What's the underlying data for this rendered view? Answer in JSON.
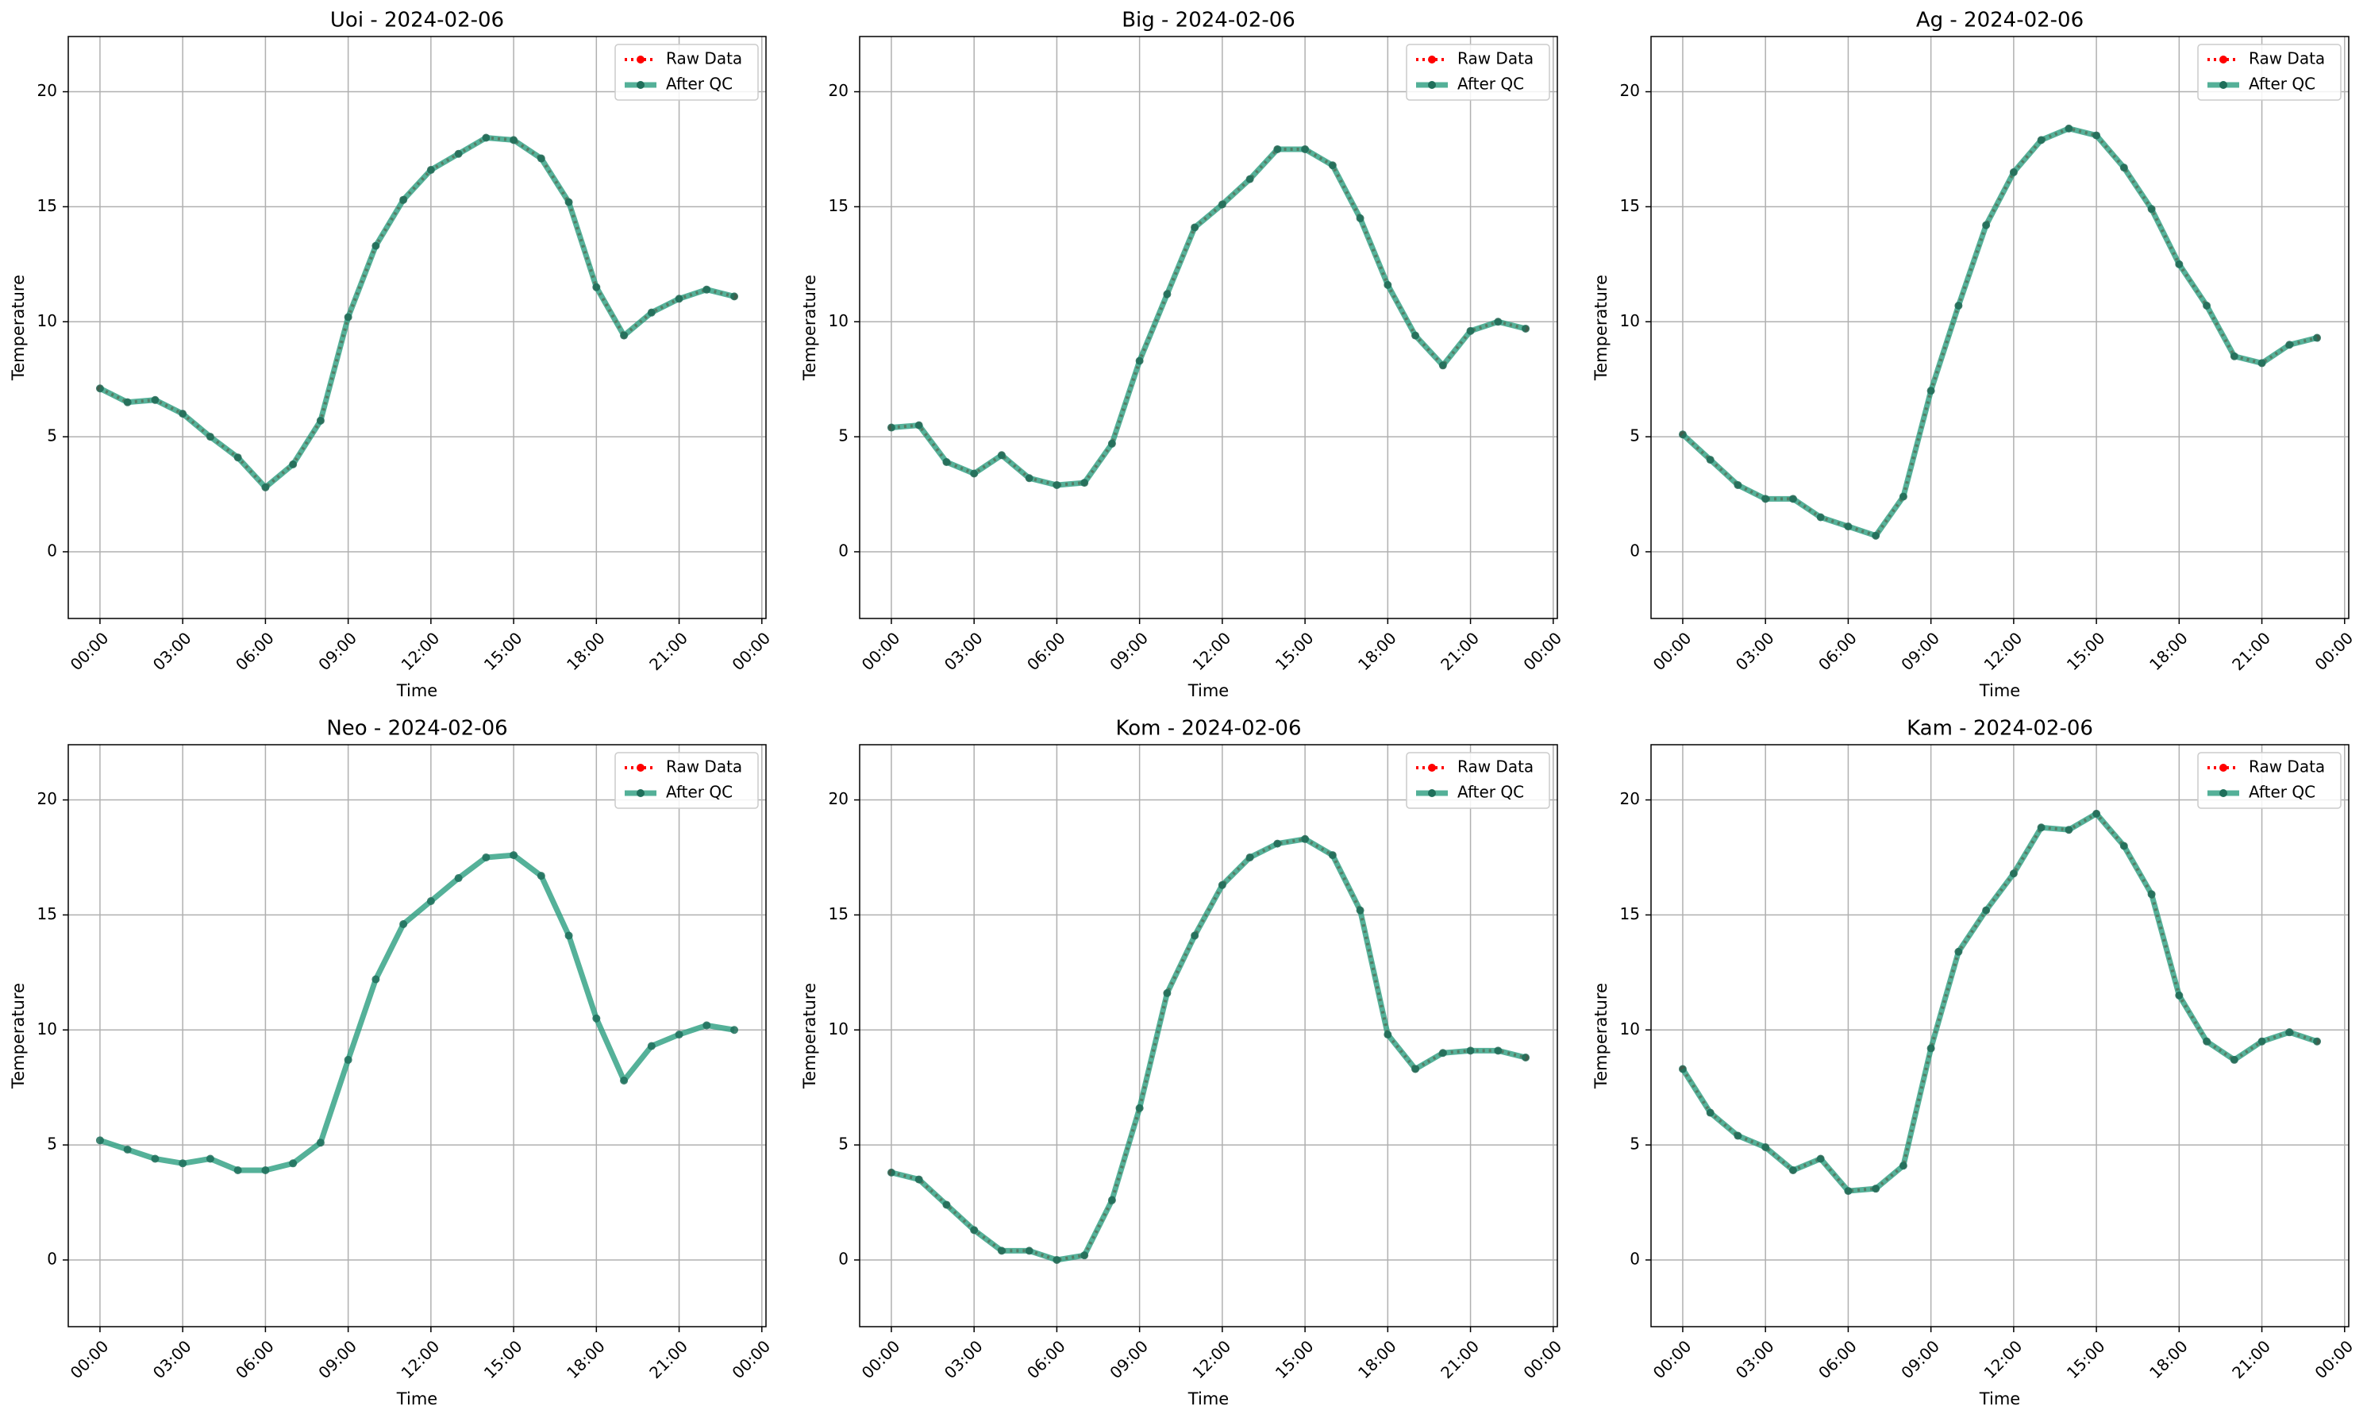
{
  "chart_data": [
    {
      "type": "line",
      "title": "Uoi - 2024-02-06",
      "xlabel": "Time",
      "ylabel": "Temperature",
      "x": [
        0,
        1,
        2,
        3,
        4,
        5,
        6,
        7,
        8,
        9,
        10,
        11,
        12,
        13,
        14,
        15,
        16,
        17,
        18,
        19,
        20,
        21,
        22,
        23
      ],
      "xlim": [
        -1.15,
        24.15
      ],
      "xticks": [
        {
          "value": 0,
          "label": "00:00"
        },
        {
          "value": 3,
          "label": "03:00"
        },
        {
          "value": 6,
          "label": "06:00"
        },
        {
          "value": 9,
          "label": "09:00"
        },
        {
          "value": 12,
          "label": "12:00"
        },
        {
          "value": 15,
          "label": "15:00"
        },
        {
          "value": 18,
          "label": "18:00"
        },
        {
          "value": 21,
          "label": "21:00"
        },
        {
          "value": 24,
          "label": "00:00"
        }
      ],
      "ylim": [
        -2.9,
        22.4
      ],
      "yticks": [
        0,
        5,
        10,
        15,
        20
      ],
      "grid": true,
      "legend": "upper right",
      "series": [
        {
          "name": "Raw Data",
          "color": "#ff0000",
          "values": [
            7.1,
            6.5,
            6.6,
            6.0,
            5.0,
            4.1,
            2.8,
            3.8,
            5.7,
            10.2,
            13.3,
            15.3,
            16.6,
            17.3,
            18.0,
            17.9,
            17.1,
            15.2,
            11.5,
            9.4,
            10.4,
            11.0,
            11.4,
            11.1
          ]
        },
        {
          "name": "After QC",
          "color": "#2a9d7f",
          "values": [
            7.1,
            6.5,
            6.6,
            6.0,
            5.0,
            4.1,
            2.8,
            3.8,
            5.7,
            10.2,
            13.3,
            15.3,
            16.6,
            17.3,
            18.0,
            17.9,
            17.1,
            15.2,
            11.5,
            9.4,
            10.4,
            11.0,
            11.4,
            11.1
          ]
        }
      ]
    },
    {
      "type": "line",
      "title": "Big - 2024-02-06",
      "xlabel": "Time",
      "ylabel": "Temperature",
      "x": [
        0,
        1,
        2,
        3,
        4,
        5,
        6,
        7,
        8,
        9,
        10,
        11,
        12,
        13,
        14,
        15,
        16,
        17,
        18,
        19,
        20,
        21,
        22,
        23
      ],
      "xlim": [
        -1.15,
        24.15
      ],
      "xticks": [
        {
          "value": 0,
          "label": "00:00"
        },
        {
          "value": 3,
          "label": "03:00"
        },
        {
          "value": 6,
          "label": "06:00"
        },
        {
          "value": 9,
          "label": "09:00"
        },
        {
          "value": 12,
          "label": "12:00"
        },
        {
          "value": 15,
          "label": "15:00"
        },
        {
          "value": 18,
          "label": "18:00"
        },
        {
          "value": 21,
          "label": "21:00"
        },
        {
          "value": 24,
          "label": "00:00"
        }
      ],
      "ylim": [
        -2.9,
        22.4
      ],
      "yticks": [
        0,
        5,
        10,
        15,
        20
      ],
      "grid": true,
      "legend": "upper right",
      "series": [
        {
          "name": "Raw Data",
          "color": "#ff0000",
          "values": [
            5.4,
            5.5,
            3.9,
            3.4,
            4.2,
            3.2,
            2.9,
            3.0,
            4.7,
            8.3,
            11.2,
            14.1,
            15.1,
            16.2,
            17.5,
            17.5,
            16.8,
            14.5,
            11.6,
            9.4,
            8.1,
            9.6,
            10.0,
            9.7
          ]
        },
        {
          "name": "After QC",
          "color": "#2a9d7f",
          "values": [
            5.4,
            5.5,
            3.9,
            3.4,
            4.2,
            3.2,
            2.9,
            3.0,
            4.7,
            8.3,
            11.2,
            14.1,
            15.1,
            16.2,
            17.5,
            17.5,
            16.8,
            14.5,
            11.6,
            9.4,
            8.1,
            9.6,
            10.0,
            9.7
          ]
        }
      ]
    },
    {
      "type": "line",
      "title": "Ag - 2024-02-06",
      "xlabel": "Time",
      "ylabel": "Temperature",
      "x": [
        0,
        1,
        2,
        3,
        4,
        5,
        6,
        7,
        8,
        9,
        10,
        11,
        12,
        13,
        14,
        15,
        16,
        17,
        18,
        19,
        20,
        21,
        22,
        23
      ],
      "xlim": [
        -1.15,
        24.15
      ],
      "xticks": [
        {
          "value": 0,
          "label": "00:00"
        },
        {
          "value": 3,
          "label": "03:00"
        },
        {
          "value": 6,
          "label": "06:00"
        },
        {
          "value": 9,
          "label": "09:00"
        },
        {
          "value": 12,
          "label": "12:00"
        },
        {
          "value": 15,
          "label": "15:00"
        },
        {
          "value": 18,
          "label": "18:00"
        },
        {
          "value": 21,
          "label": "21:00"
        },
        {
          "value": 24,
          "label": "00:00"
        }
      ],
      "ylim": [
        -2.9,
        22.4
      ],
      "yticks": [
        0,
        5,
        10,
        15,
        20
      ],
      "grid": true,
      "legend": "upper right",
      "series": [
        {
          "name": "Raw Data",
          "color": "#ff0000",
          "values": [
            5.1,
            4.0,
            2.9,
            2.3,
            2.3,
            1.5,
            1.1,
            0.7,
            2.4,
            7.0,
            10.7,
            14.2,
            16.5,
            17.9,
            18.4,
            18.1,
            16.7,
            14.9,
            12.5,
            10.7,
            8.5,
            8.2,
            9.0,
            9.3
          ]
        },
        {
          "name": "After QC",
          "color": "#2a9d7f",
          "values": [
            5.1,
            4.0,
            2.9,
            2.3,
            2.3,
            1.5,
            1.1,
            0.7,
            2.4,
            7.0,
            10.7,
            14.2,
            16.5,
            17.9,
            18.4,
            18.1,
            16.7,
            14.9,
            12.5,
            10.7,
            8.5,
            8.2,
            9.0,
            9.3
          ]
        }
      ]
    },
    {
      "type": "line",
      "title": "Neo - 2024-02-06",
      "xlabel": "Time",
      "ylabel": "Temperature",
      "x": [
        0,
        1,
        2,
        3,
        4,
        5,
        6,
        7,
        8,
        9,
        10,
        11,
        12,
        13,
        14,
        15,
        16,
        17,
        18,
        19,
        20,
        21,
        22,
        23
      ],
      "xlim": [
        -1.15,
        24.15
      ],
      "xticks": [
        {
          "value": 0,
          "label": "00:00"
        },
        {
          "value": 3,
          "label": "03:00"
        },
        {
          "value": 6,
          "label": "06:00"
        },
        {
          "value": 9,
          "label": "09:00"
        },
        {
          "value": 12,
          "label": "12:00"
        },
        {
          "value": 15,
          "label": "15:00"
        },
        {
          "value": 18,
          "label": "18:00"
        },
        {
          "value": 21,
          "label": "21:00"
        },
        {
          "value": 24,
          "label": "00:00"
        }
      ],
      "ylim": [
        -2.9,
        22.4
      ],
      "yticks": [
        0,
        5,
        10,
        15,
        20
      ],
      "grid": true,
      "legend": "upper right",
      "series": [
        {
          "name": "Raw Data",
          "color": "#ff0000",
          "values": [
            null,
            null,
            null,
            null,
            null,
            null,
            null,
            null,
            null,
            null,
            null,
            null,
            null,
            null,
            null,
            null,
            null,
            null,
            null,
            null,
            null,
            null,
            null,
            null
          ]
        },
        {
          "name": "After QC",
          "color": "#2a9d7f",
          "values": [
            5.2,
            4.8,
            4.4,
            4.2,
            4.4,
            3.9,
            3.9,
            4.2,
            5.1,
            8.7,
            12.2,
            14.6,
            15.6,
            16.6,
            17.5,
            17.6,
            16.7,
            14.1,
            10.5,
            7.8,
            9.3,
            9.8,
            10.2,
            10.0
          ]
        }
      ]
    },
    {
      "type": "line",
      "title": "Kom - 2024-02-06",
      "xlabel": "Time",
      "ylabel": "Temperature",
      "x": [
        0,
        1,
        2,
        3,
        4,
        5,
        6,
        7,
        8,
        9,
        10,
        11,
        12,
        13,
        14,
        15,
        16,
        17,
        18,
        19,
        20,
        21,
        22,
        23
      ],
      "xlim": [
        -1.15,
        24.15
      ],
      "xticks": [
        {
          "value": 0,
          "label": "00:00"
        },
        {
          "value": 3,
          "label": "03:00"
        },
        {
          "value": 6,
          "label": "06:00"
        },
        {
          "value": 9,
          "label": "09:00"
        },
        {
          "value": 12,
          "label": "12:00"
        },
        {
          "value": 15,
          "label": "15:00"
        },
        {
          "value": 18,
          "label": "18:00"
        },
        {
          "value": 21,
          "label": "21:00"
        },
        {
          "value": 24,
          "label": "00:00"
        }
      ],
      "ylim": [
        -2.9,
        22.4
      ],
      "yticks": [
        0,
        5,
        10,
        15,
        20
      ],
      "grid": true,
      "legend": "upper right",
      "series": [
        {
          "name": "Raw Data",
          "color": "#ff0000",
          "values": [
            3.8,
            3.5,
            2.4,
            1.3,
            0.4,
            0.4,
            0.0,
            0.2,
            2.6,
            6.6,
            11.6,
            14.1,
            16.3,
            17.5,
            18.1,
            18.3,
            17.6,
            15.2,
            9.8,
            8.3,
            9.0,
            9.1,
            9.1,
            8.8
          ]
        },
        {
          "name": "After QC",
          "color": "#2a9d7f",
          "values": [
            3.8,
            3.5,
            2.4,
            1.3,
            0.4,
            0.4,
            0.0,
            0.2,
            2.6,
            6.6,
            11.6,
            14.1,
            16.3,
            17.5,
            18.1,
            18.3,
            17.6,
            15.2,
            9.8,
            8.3,
            9.0,
            9.1,
            9.1,
            8.8
          ]
        }
      ]
    },
    {
      "type": "line",
      "title": "Kam - 2024-02-06",
      "xlabel": "Time",
      "ylabel": "Temperature",
      "x": [
        0,
        1,
        2,
        3,
        4,
        5,
        6,
        7,
        8,
        9,
        10,
        11,
        12,
        13,
        14,
        15,
        16,
        17,
        18,
        19,
        20,
        21,
        22,
        23
      ],
      "xlim": [
        -1.15,
        24.15
      ],
      "xticks": [
        {
          "value": 0,
          "label": "00:00"
        },
        {
          "value": 3,
          "label": "03:00"
        },
        {
          "value": 6,
          "label": "06:00"
        },
        {
          "value": 9,
          "label": "09:00"
        },
        {
          "value": 12,
          "label": "12:00"
        },
        {
          "value": 15,
          "label": "15:00"
        },
        {
          "value": 18,
          "label": "18:00"
        },
        {
          "value": 21,
          "label": "21:00"
        },
        {
          "value": 24,
          "label": "00:00"
        }
      ],
      "ylim": [
        -2.9,
        22.4
      ],
      "yticks": [
        0,
        5,
        10,
        15,
        20
      ],
      "grid": true,
      "legend": "upper right",
      "series": [
        {
          "name": "Raw Data",
          "color": "#ff0000",
          "values": [
            8.3,
            6.4,
            5.4,
            4.9,
            3.9,
            4.4,
            3.0,
            3.1,
            4.1,
            9.2,
            13.4,
            15.2,
            16.8,
            18.8,
            18.7,
            19.4,
            18.0,
            15.9,
            11.5,
            9.5,
            8.7,
            9.5,
            9.9,
            9.5
          ]
        },
        {
          "name": "After QC",
          "color": "#2a9d7f",
          "values": [
            8.3,
            6.4,
            5.4,
            4.9,
            3.9,
            4.4,
            3.0,
            3.1,
            4.1,
            9.2,
            13.4,
            15.2,
            16.8,
            18.8,
            18.7,
            19.4,
            18.0,
            15.9,
            11.5,
            9.5,
            8.7,
            9.5,
            9.9,
            9.5
          ]
        }
      ]
    }
  ]
}
